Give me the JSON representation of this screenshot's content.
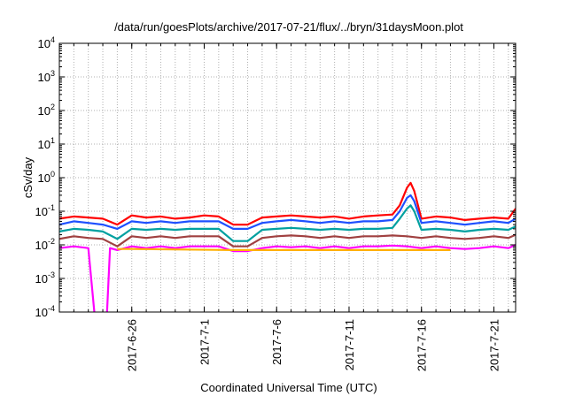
{
  "chart_data": {
    "type": "line",
    "title": "/data/run/goesPlots/archive/2017-07-21/flux/../bryn/31daysMoon.plot",
    "xlabel": "Coordinated Universal Time (UTC)",
    "ylabel": "cSv/day",
    "y_scale": "log",
    "ylim": [
      0.0001,
      10000
    ],
    "xlim": [
      "2017-06-21",
      "2017-07-22 12:00"
    ],
    "grid": true,
    "legend": "none",
    "y_ticks": [
      {
        "value": 0.0001,
        "base": "10",
        "exp": "-4"
      },
      {
        "value": 0.001,
        "base": "10",
        "exp": "-3"
      },
      {
        "value": 0.01,
        "base": "10",
        "exp": "-2"
      },
      {
        "value": 0.1,
        "base": "10",
        "exp": "-1"
      },
      {
        "value": 1,
        "base": "10",
        "exp": "0"
      },
      {
        "value": 10,
        "base": "10",
        "exp": "1"
      },
      {
        "value": 100,
        "base": "10",
        "exp": "2"
      },
      {
        "value": 1000,
        "base": "10",
        "exp": "3"
      },
      {
        "value": 10000,
        "base": "10",
        "exp": "4"
      }
    ],
    "x_ticks": [
      {
        "value": "2017-06-26",
        "label": "2017-6-26"
      },
      {
        "value": "2017-07-01",
        "label": "2017-7-1"
      },
      {
        "value": "2017-07-06",
        "label": "2017-7-6"
      },
      {
        "value": "2017-07-11",
        "label": "2017-7-11"
      },
      {
        "value": "2017-07-16",
        "label": "2017-7-16"
      },
      {
        "value": "2017-07-21",
        "label": "2017-7-21"
      }
    ],
    "series": [
      {
        "color": "#ff0000",
        "x": [
          "2017-06-21",
          "2017-06-22",
          "2017-06-23",
          "2017-06-24",
          "2017-06-25",
          "2017-06-26",
          "2017-06-27",
          "2017-06-28",
          "2017-06-29",
          "2017-06-30",
          "2017-07-01",
          "2017-07-02",
          "2017-07-03",
          "2017-07-04",
          "2017-07-05",
          "2017-07-06",
          "2017-07-07",
          "2017-07-08",
          "2017-07-09",
          "2017-07-10",
          "2017-07-11",
          "2017-07-12",
          "2017-07-13",
          "2017-07-14",
          "2017-07-14 12:00",
          "2017-07-15",
          "2017-07-15 06:00",
          "2017-07-15 12:00",
          "2017-07-16",
          "2017-07-17",
          "2017-07-18",
          "2017-07-19",
          "2017-07-20",
          "2017-07-21",
          "2017-07-22",
          "2017-07-22 12:00"
        ],
        "y": [
          0.06,
          0.07,
          0.065,
          0.06,
          0.04,
          0.075,
          0.065,
          0.07,
          0.06,
          0.065,
          0.075,
          0.07,
          0.04,
          0.04,
          0.065,
          0.07,
          0.075,
          0.07,
          0.065,
          0.07,
          0.06,
          0.07,
          0.075,
          0.08,
          0.15,
          0.5,
          0.7,
          0.4,
          0.06,
          0.07,
          0.065,
          0.055,
          0.06,
          0.065,
          0.06,
          0.12
        ]
      },
      {
        "color": "#1e50ff",
        "x": [
          "2017-06-21",
          "2017-06-22",
          "2017-06-23",
          "2017-06-24",
          "2017-06-25",
          "2017-06-26",
          "2017-06-27",
          "2017-06-28",
          "2017-06-29",
          "2017-06-30",
          "2017-07-01",
          "2017-07-02",
          "2017-07-03",
          "2017-07-04",
          "2017-07-05",
          "2017-07-06",
          "2017-07-07",
          "2017-07-08",
          "2017-07-09",
          "2017-07-10",
          "2017-07-11",
          "2017-07-12",
          "2017-07-13",
          "2017-07-14",
          "2017-07-14 12:00",
          "2017-07-15",
          "2017-07-15 06:00",
          "2017-07-15 12:00",
          "2017-07-16",
          "2017-07-17",
          "2017-07-18",
          "2017-07-19",
          "2017-07-20",
          "2017-07-21",
          "2017-07-22",
          "2017-07-22 12:00"
        ],
        "y": [
          0.04,
          0.05,
          0.045,
          0.04,
          0.03,
          0.05,
          0.045,
          0.05,
          0.045,
          0.05,
          0.05,
          0.05,
          0.03,
          0.03,
          0.045,
          0.05,
          0.055,
          0.05,
          0.045,
          0.05,
          0.045,
          0.05,
          0.05,
          0.055,
          0.1,
          0.25,
          0.3,
          0.2,
          0.045,
          0.05,
          0.045,
          0.04,
          0.045,
          0.05,
          0.045,
          0.06
        ]
      },
      {
        "color": "#00a0a0",
        "x": [
          "2017-06-21",
          "2017-06-22",
          "2017-06-23",
          "2017-06-24",
          "2017-06-25",
          "2017-06-26",
          "2017-06-27",
          "2017-06-28",
          "2017-06-29",
          "2017-06-30",
          "2017-07-01",
          "2017-07-02",
          "2017-07-03",
          "2017-07-04",
          "2017-07-05",
          "2017-07-06",
          "2017-07-07",
          "2017-07-08",
          "2017-07-09",
          "2017-07-10",
          "2017-07-11",
          "2017-07-12",
          "2017-07-13",
          "2017-07-14",
          "2017-07-14 12:00",
          "2017-07-15",
          "2017-07-15 06:00",
          "2017-07-15 12:00",
          "2017-07-16",
          "2017-07-17",
          "2017-07-18",
          "2017-07-19",
          "2017-07-20",
          "2017-07-21",
          "2017-07-22",
          "2017-07-22 12:00"
        ],
        "y": [
          0.025,
          0.03,
          0.028,
          0.025,
          0.015,
          0.03,
          0.028,
          0.03,
          0.028,
          0.03,
          0.03,
          0.03,
          0.013,
          0.013,
          0.028,
          0.03,
          0.032,
          0.03,
          0.028,
          0.03,
          0.028,
          0.03,
          0.03,
          0.032,
          0.06,
          0.12,
          0.15,
          0.1,
          0.028,
          0.03,
          0.028,
          0.025,
          0.028,
          0.03,
          0.028,
          0.035
        ]
      },
      {
        "color": "#a04040",
        "x": [
          "2017-06-21",
          "2017-06-22",
          "2017-06-23",
          "2017-06-24",
          "2017-06-25",
          "2017-06-26",
          "2017-06-27",
          "2017-06-28",
          "2017-06-29",
          "2017-06-30",
          "2017-07-01",
          "2017-07-02",
          "2017-07-03",
          "2017-07-04",
          "2017-07-05",
          "2017-07-06",
          "2017-07-07",
          "2017-07-08",
          "2017-07-09",
          "2017-07-10",
          "2017-07-11",
          "2017-07-12",
          "2017-07-13",
          "2017-07-14",
          "2017-07-15",
          "2017-07-16",
          "2017-07-17",
          "2017-07-18",
          "2017-07-19",
          "2017-07-20",
          "2017-07-21",
          "2017-07-22",
          "2017-07-22 12:00"
        ],
        "y": [
          0.015,
          0.018,
          0.016,
          0.015,
          0.009,
          0.018,
          0.016,
          0.018,
          0.016,
          0.018,
          0.018,
          0.018,
          0.009,
          0.009,
          0.016,
          0.018,
          0.019,
          0.018,
          0.016,
          0.018,
          0.016,
          0.018,
          0.018,
          0.019,
          0.018,
          0.016,
          0.018,
          0.016,
          0.015,
          0.016,
          0.018,
          0.016,
          0.02
        ]
      },
      {
        "color": "#ff00ff",
        "x": [
          "2017-06-21",
          "2017-06-22",
          "2017-06-23",
          "2017-06-23 12:00",
          "2017-06-23 18:00",
          "2017-06-24",
          "2017-06-24 06:00",
          "2017-06-24 12:00",
          "2017-06-25",
          "2017-06-26",
          "2017-06-27",
          "2017-06-28",
          "2017-06-29",
          "2017-06-30",
          "2017-07-01",
          "2017-07-02",
          "2017-07-03",
          "2017-07-04",
          "2017-07-05",
          "2017-07-06",
          "2017-07-07",
          "2017-07-08",
          "2017-07-09",
          "2017-07-10",
          "2017-07-11",
          "2017-07-12",
          "2017-07-13",
          "2017-07-14",
          "2017-07-15",
          "2017-07-16",
          "2017-07-17",
          "2017-07-18",
          "2017-07-19",
          "2017-07-20",
          "2017-07-21",
          "2017-07-22",
          "2017-07-22 12:00"
        ],
        "y": [
          0.008,
          0.009,
          0.008,
          5e-05,
          5e-05,
          5e-05,
          5e-05,
          0.008,
          0.007,
          0.009,
          0.008,
          0.009,
          0.008,
          0.009,
          0.009,
          0.009,
          0.0065,
          0.0065,
          0.008,
          0.009,
          0.0085,
          0.009,
          0.008,
          0.009,
          0.008,
          0.009,
          0.009,
          0.0095,
          0.009,
          0.008,
          0.009,
          0.008,
          0.0075,
          0.008,
          0.009,
          0.008,
          0.01
        ]
      },
      {
        "color": "#ffb000",
        "x": [
          "2017-06-25",
          "2017-06-26",
          "2017-07-03",
          "2017-07-04",
          "2017-07-17",
          "2017-07-18"
        ],
        "y": [
          0.0075,
          0.0075,
          0.007,
          0.007,
          0.007,
          0.007
        ]
      }
    ]
  }
}
